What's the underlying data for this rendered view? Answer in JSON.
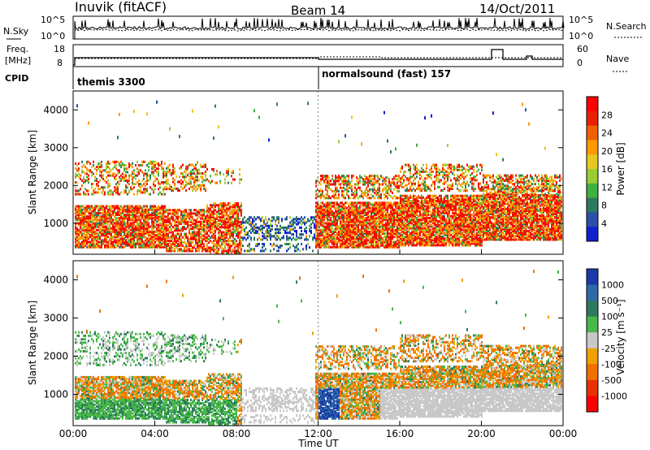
{
  "header": {
    "station": "Inuvik (fitACF)",
    "beam": "Beam 14",
    "date": "14/Oct/2011"
  },
  "top_panels": {
    "nsky_label": "N.Sky",
    "nsearch_label": "N.Search",
    "log_hi": "10^5",
    "log_lo": "10^0",
    "freq_label_1": "Freq.",
    "freq_label_2": "[MHz]",
    "freq_ticks": [
      "18",
      "8"
    ],
    "nave_label": "Nave",
    "nave_ticks": [
      "60",
      "0"
    ],
    "cpid_label": "CPID",
    "cpid_entries": [
      "themis 3300",
      "normalsound (fast) 157"
    ]
  },
  "chart_data": [
    {
      "type": "heatmap",
      "panel": "power",
      "ylabel": "Slant Range [km]",
      "ylim": [
        180,
        4500
      ],
      "yticks": [
        "1000",
        "2000",
        "3000",
        "4000"
      ],
      "colorbar_label": "Power [dB]",
      "colorbar_ticks": [
        "4",
        "8",
        "12",
        "16",
        "20",
        "24",
        "28"
      ],
      "colorscale": [
        "#1020d0",
        "#2a50a8",
        "#2e7a5e",
        "#40b040",
        "#9acd32",
        "#e8c820",
        "#ff9900",
        "#f06000",
        "#e82000",
        "#ff0000"
      ]
    },
    {
      "type": "heatmap",
      "panel": "velocity",
      "ylabel": "Slant Range [km]",
      "ylim": [
        180,
        4500
      ],
      "yticks": [
        "1000",
        "2000",
        "3000",
        "4000"
      ],
      "colorbar_label": "Velocity [m s⁻¹]",
      "colorbar_ticks": [
        "1000",
        "500",
        "100",
        "25",
        "-25",
        "-100",
        "-500",
        "-1000"
      ],
      "colorscale": [
        "#1a3aa8",
        "#2e6aa8",
        "#2e7a5e",
        "#48b848",
        "#c8c8c8",
        "#f0a000",
        "#f07000",
        "#e83000",
        "#ff0000"
      ]
    }
  ],
  "xaxis": {
    "label": "Time UT",
    "ticks": [
      "00:00",
      "04:00",
      "08:00",
      "12:00",
      "16:00",
      "20:00",
      "00:00"
    ]
  },
  "cpid_switch_hour": 12
}
